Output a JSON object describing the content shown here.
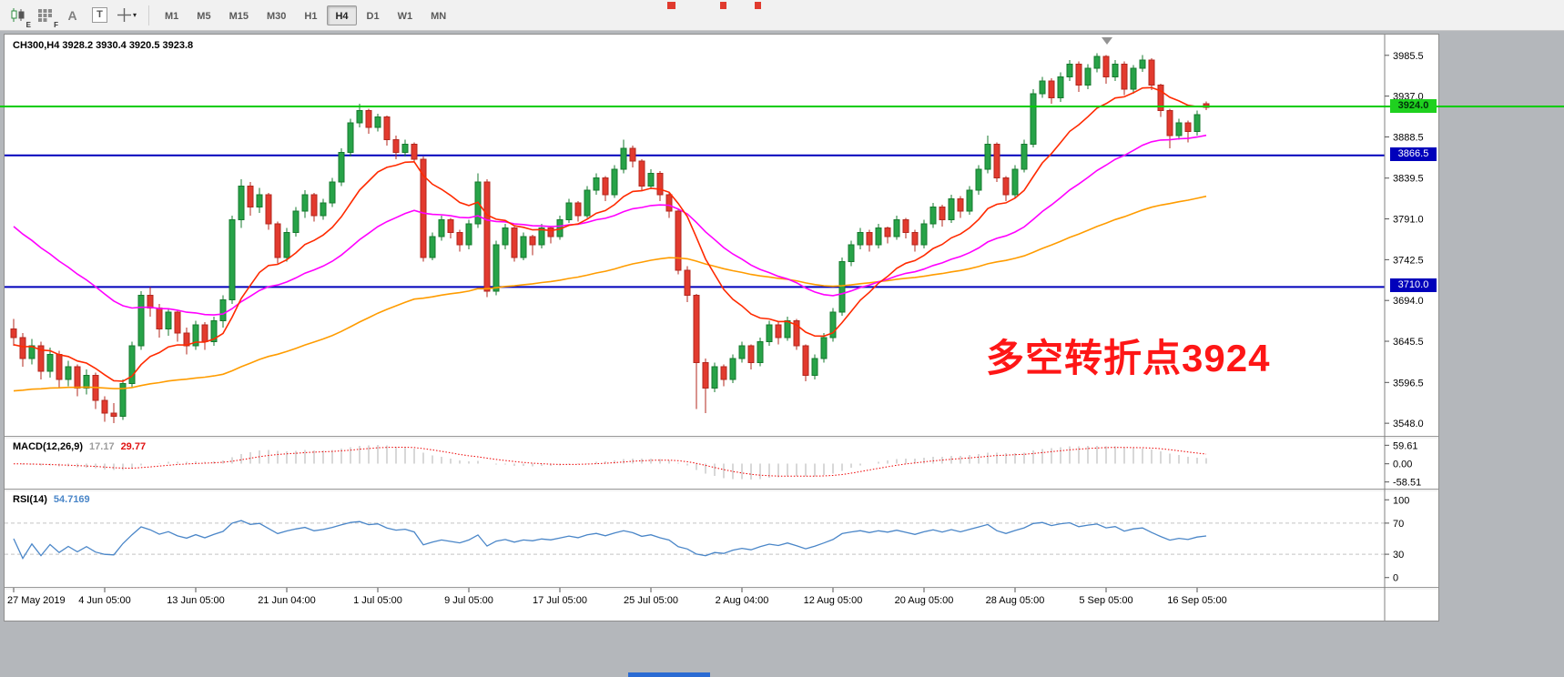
{
  "toolbar": {
    "timeframes": [
      "M1",
      "M5",
      "M15",
      "M30",
      "H1",
      "H4",
      "D1",
      "W1",
      "MN"
    ],
    "active_timeframe": "H4",
    "tools": {
      "chart_letter": "E",
      "grid_letter": "F",
      "text_label": "A",
      "text_tool": "T"
    }
  },
  "chart_data": {
    "type": "candlestick",
    "symbol_header": "CH300,H4  3928.2 3930.4 3920.5 3923.8",
    "annotation": {
      "text": "多空转折点3924",
      "color": "#fe1616"
    },
    "price_axis": {
      "min": 3533,
      "max": 4008,
      "ticks": [
        3985.5,
        3937.0,
        3888.5,
        3839.5,
        3791.0,
        3742.5,
        3694.0,
        3645.5,
        3596.5,
        3548.0
      ]
    },
    "hlines": [
      {
        "value": 3924.0,
        "label": "3924.0",
        "color": "#00cc00",
        "badge_bg": "#1fd11f",
        "full_width": true
      },
      {
        "value": 3866.5,
        "label": "3866.5",
        "color": "#0000bb",
        "badge_bg": "#0000bb",
        "full_width": false
      },
      {
        "value": 3710.0,
        "label": "3710.0",
        "color": "#0000bb",
        "badge_bg": "#0000bb",
        "full_width": false
      }
    ],
    "colors": {
      "up": "#27a348",
      "up_stroke": "#157a2e",
      "down": "#e23a2e",
      "down_stroke": "#b3271e"
    },
    "ma_lines": [
      {
        "name": "ma-slow",
        "period": 89,
        "init": 3585,
        "color": "#ff9c00"
      },
      {
        "name": "ma-medium",
        "period": 34,
        "init": 3790,
        "color": "#ff00ff"
      },
      {
        "name": "ma-fast",
        "period": 13,
        "init": 3640,
        "color": "#ff2a00"
      }
    ],
    "candles": [
      [
        3660,
        3672,
        3640,
        3650
      ],
      [
        3650,
        3655,
        3615,
        3625
      ],
      [
        3625,
        3648,
        3618,
        3640
      ],
      [
        3640,
        3645,
        3600,
        3610
      ],
      [
        3610,
        3638,
        3602,
        3630
      ],
      [
        3630,
        3634,
        3590,
        3600
      ],
      [
        3600,
        3622,
        3592,
        3615
      ],
      [
        3615,
        3618,
        3580,
        3590
      ],
      [
        3590,
        3612,
        3582,
        3605
      ],
      [
        3605,
        3608,
        3565,
        3575
      ],
      [
        3575,
        3580,
        3550,
        3560
      ],
      [
        3560,
        3572,
        3548,
        3556
      ],
      [
        3556,
        3600,
        3552,
        3595
      ],
      [
        3595,
        3645,
        3590,
        3640
      ],
      [
        3640,
        3705,
        3635,
        3700
      ],
      [
        3700,
        3710,
        3675,
        3685
      ],
      [
        3685,
        3690,
        3650,
        3660
      ],
      [
        3660,
        3685,
        3652,
        3680
      ],
      [
        3680,
        3682,
        3645,
        3655
      ],
      [
        3655,
        3662,
        3630,
        3640
      ],
      [
        3640,
        3670,
        3635,
        3665
      ],
      [
        3665,
        3668,
        3635,
        3645
      ],
      [
        3645,
        3675,
        3640,
        3670
      ],
      [
        3670,
        3700,
        3662,
        3695
      ],
      [
        3695,
        3795,
        3690,
        3790
      ],
      [
        3790,
        3838,
        3780,
        3830
      ],
      [
        3830,
        3835,
        3795,
        3805
      ],
      [
        3805,
        3828,
        3798,
        3820
      ],
      [
        3820,
        3822,
        3778,
        3785
      ],
      [
        3785,
        3788,
        3738,
        3745
      ],
      [
        3745,
        3780,
        3740,
        3775
      ],
      [
        3775,
        3805,
        3770,
        3800
      ],
      [
        3800,
        3825,
        3792,
        3820
      ],
      [
        3820,
        3822,
        3788,
        3795
      ],
      [
        3795,
        3815,
        3790,
        3810
      ],
      [
        3810,
        3840,
        3805,
        3835
      ],
      [
        3835,
        3875,
        3830,
        3870
      ],
      [
        3870,
        3910,
        3865,
        3905
      ],
      [
        3905,
        3928,
        3900,
        3920
      ],
      [
        3920,
        3922,
        3892,
        3900
      ],
      [
        3900,
        3916,
        3895,
        3912
      ],
      [
        3912,
        3914,
        3878,
        3885
      ],
      [
        3885,
        3890,
        3862,
        3870
      ],
      [
        3870,
        3885,
        3865,
        3880
      ],
      [
        3880,
        3882,
        3858,
        3862
      ],
      [
        3862,
        3865,
        3740,
        3745
      ],
      [
        3745,
        3775,
        3742,
        3770
      ],
      [
        3770,
        3795,
        3765,
        3790
      ],
      [
        3790,
        3792,
        3768,
        3775
      ],
      [
        3775,
        3778,
        3752,
        3760
      ],
      [
        3760,
        3790,
        3755,
        3785
      ],
      [
        3785,
        3845,
        3780,
        3835
      ],
      [
        3835,
        3838,
        3698,
        3705
      ],
      [
        3705,
        3765,
        3700,
        3760
      ],
      [
        3760,
        3785,
        3755,
        3780
      ],
      [
        3780,
        3782,
        3740,
        3745
      ],
      [
        3745,
        3775,
        3742,
        3770
      ],
      [
        3770,
        3772,
        3748,
        3760
      ],
      [
        3760,
        3785,
        3756,
        3780
      ],
      [
        3780,
        3782,
        3762,
        3770
      ],
      [
        3770,
        3795,
        3766,
        3790
      ],
      [
        3790,
        3815,
        3786,
        3810
      ],
      [
        3810,
        3812,
        3788,
        3795
      ],
      [
        3795,
        3830,
        3792,
        3825
      ],
      [
        3825,
        3845,
        3820,
        3840
      ],
      [
        3840,
        3842,
        3812,
        3820
      ],
      [
        3820,
        3855,
        3816,
        3850
      ],
      [
        3850,
        3885,
        3845,
        3875
      ],
      [
        3875,
        3878,
        3852,
        3860
      ],
      [
        3860,
        3862,
        3825,
        3830
      ],
      [
        3830,
        3850,
        3826,
        3845
      ],
      [
        3845,
        3848,
        3812,
        3820
      ],
      [
        3820,
        3822,
        3792,
        3800
      ],
      [
        3800,
        3802,
        3725,
        3730
      ],
      [
        3730,
        3735,
        3692,
        3700
      ],
      [
        3700,
        3702,
        3565,
        3620
      ],
      [
        3620,
        3625,
        3560,
        3590
      ],
      [
        3590,
        3620,
        3585,
        3615
      ],
      [
        3615,
        3618,
        3592,
        3600
      ],
      [
        3600,
        3630,
        3596,
        3625
      ],
      [
        3625,
        3645,
        3620,
        3640
      ],
      [
        3640,
        3642,
        3612,
        3620
      ],
      [
        3620,
        3650,
        3616,
        3645
      ],
      [
        3645,
        3670,
        3640,
        3665
      ],
      [
        3665,
        3668,
        3642,
        3650
      ],
      [
        3650,
        3675,
        3646,
        3670
      ],
      [
        3670,
        3672,
        3635,
        3640
      ],
      [
        3640,
        3642,
        3598,
        3605
      ],
      [
        3605,
        3630,
        3600,
        3625
      ],
      [
        3625,
        3655,
        3620,
        3650
      ],
      [
        3650,
        3685,
        3645,
        3680
      ],
      [
        3680,
        3745,
        3676,
        3740
      ],
      [
        3740,
        3765,
        3735,
        3760
      ],
      [
        3760,
        3780,
        3755,
        3775
      ],
      [
        3775,
        3778,
        3752,
        3760
      ],
      [
        3760,
        3785,
        3756,
        3780
      ],
      [
        3780,
        3782,
        3762,
        3770
      ],
      [
        3770,
        3795,
        3766,
        3790
      ],
      [
        3790,
        3792,
        3768,
        3775
      ],
      [
        3775,
        3778,
        3752,
        3760
      ],
      [
        3760,
        3790,
        3756,
        3785
      ],
      [
        3785,
        3810,
        3780,
        3805
      ],
      [
        3805,
        3808,
        3782,
        3790
      ],
      [
        3790,
        3820,
        3786,
        3815
      ],
      [
        3815,
        3818,
        3792,
        3800
      ],
      [
        3800,
        3830,
        3796,
        3825
      ],
      [
        3825,
        3855,
        3820,
        3850
      ],
      [
        3850,
        3890,
        3845,
        3880
      ],
      [
        3880,
        3882,
        3835,
        3840
      ],
      [
        3840,
        3842,
        3812,
        3820
      ],
      [
        3820,
        3855,
        3816,
        3850
      ],
      [
        3850,
        3885,
        3846,
        3880
      ],
      [
        3880,
        3945,
        3876,
        3940
      ],
      [
        3940,
        3960,
        3935,
        3955
      ],
      [
        3955,
        3958,
        3928,
        3935
      ],
      [
        3935,
        3965,
        3930,
        3960
      ],
      [
        3960,
        3980,
        3955,
        3975
      ],
      [
        3975,
        3978,
        3942,
        3950
      ],
      [
        3950,
        3975,
        3945,
        3970
      ],
      [
        3970,
        3988,
        3965,
        3984
      ],
      [
        3984,
        3986,
        3952,
        3960
      ],
      [
        3960,
        3980,
        3955,
        3975
      ],
      [
        3975,
        3978,
        3938,
        3945
      ],
      [
        3945,
        3974,
        3940,
        3970
      ],
      [
        3970,
        3986,
        3966,
        3980
      ],
      [
        3980,
        3982,
        3944,
        3950
      ],
      [
        3950,
        3952,
        3912,
        3920
      ],
      [
        3920,
        3922,
        3875,
        3890
      ],
      [
        3890,
        3910,
        3885,
        3905
      ],
      [
        3905,
        3908,
        3882,
        3895
      ],
      [
        3895,
        3920,
        3890,
        3915
      ],
      [
        3928.2,
        3930.4,
        3920.5,
        3923.8
      ]
    ],
    "time_labels": [
      {
        "text": "27 May 2019",
        "idx": 0
      },
      {
        "text": "4 Jun 05:00",
        "idx": 10
      },
      {
        "text": "13 Jun 05:00",
        "idx": 20
      },
      {
        "text": "21 Jun 04:00",
        "idx": 30
      },
      {
        "text": "1 Jul 05:00",
        "idx": 40
      },
      {
        "text": "9 Jul 05:00",
        "idx": 50
      },
      {
        "text": "17 Jul 05:00",
        "idx": 60
      },
      {
        "text": "25 Jul 05:00",
        "idx": 70
      },
      {
        "text": "2 Aug 04:00",
        "idx": 80
      },
      {
        "text": "12 Aug 05:00",
        "idx": 90
      },
      {
        "text": "20 Aug 05:00",
        "idx": 100
      },
      {
        "text": "28 Aug 05:00",
        "idx": 110
      },
      {
        "text": "5 Sep 05:00",
        "idx": 120
      },
      {
        "text": "16 Sep 05:00",
        "idx": 130
      }
    ],
    "macd": {
      "label": "MACD(12,26,9)",
      "value_main": "17.17",
      "value_signal": "29.77",
      "ticks": [
        "59.61",
        "0.00",
        "-58.51"
      ],
      "range": [
        -80,
        84
      ],
      "fast": 12,
      "slow": 26,
      "signal": 9,
      "hist_color": "#b0b0b0",
      "signal_color": "#ee0000"
    },
    "rsi": {
      "label": "RSI(14)",
      "value_text": "54.7169",
      "period": 14,
      "ticks": [
        "100",
        "70",
        "30",
        "0"
      ],
      "levels": [
        70,
        30
      ],
      "range": [
        -12,
        112
      ],
      "color": "#4a86c8"
    }
  }
}
